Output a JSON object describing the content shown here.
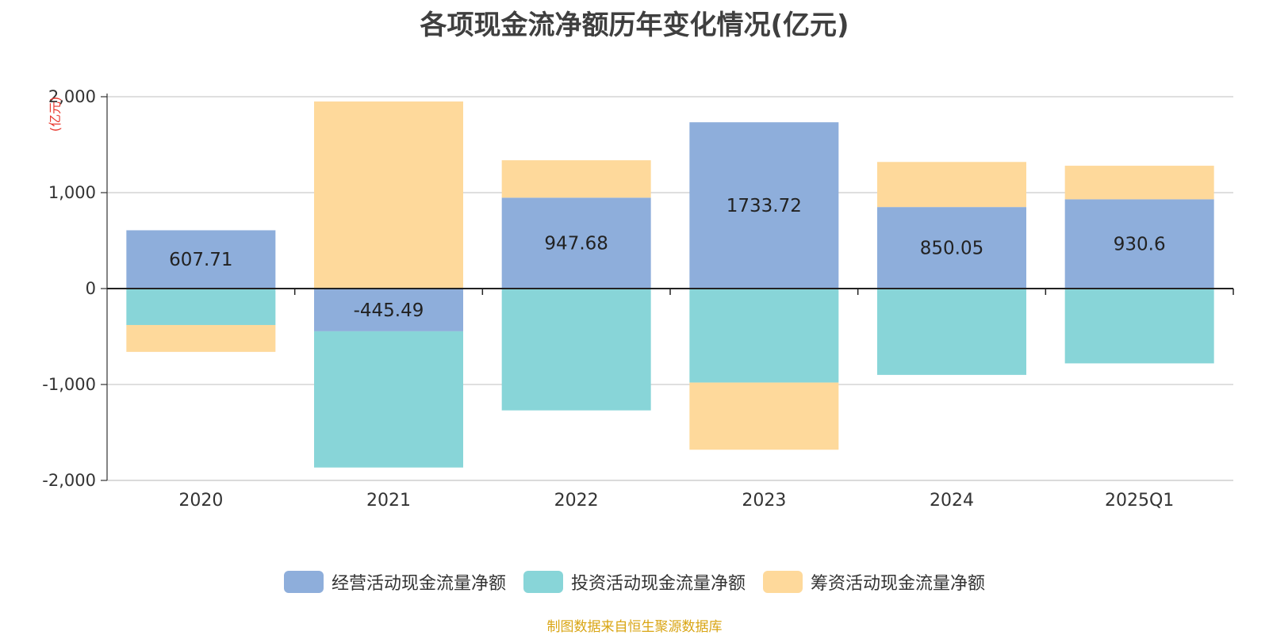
{
  "chart_data": {
    "type": "bar",
    "stacked": true,
    "title": "各项现金流净额历年变化情况(亿元)",
    "ylabel": "(亿元)",
    "xlabel": "",
    "categories": [
      "2020",
      "2021",
      "2022",
      "2023",
      "2024",
      "2025Q1"
    ],
    "ylim": [
      -2000,
      2000
    ],
    "yticks": [
      2000,
      1000,
      0,
      -1000,
      -2000
    ],
    "ytick_labels": [
      "2,000",
      "1,000",
      "0",
      "-1,000",
      "-2,000"
    ],
    "grid": true,
    "legend_position": "bottom",
    "series": [
      {
        "name": "经营活动现金流量净额",
        "color": "#8eaedb",
        "values": [
          607.71,
          -445.49,
          947.68,
          1733.72,
          850.05,
          930.6
        ],
        "labels": [
          "607.71",
          "-445.49",
          "947.68",
          "1733.72",
          "850.05",
          "930.6"
        ]
      },
      {
        "name": "投资活动现金流量净额",
        "color": "#88d5d8",
        "values": [
          -380,
          -1420,
          -1270,
          -980,
          -900,
          -780
        ]
      },
      {
        "name": "筹资活动现金流量净额",
        "color": "#fed99b",
        "values": [
          -280,
          1950,
          390,
          -700,
          470,
          350
        ]
      }
    ]
  },
  "source_note": "制图数据来自恒生聚源数据库"
}
